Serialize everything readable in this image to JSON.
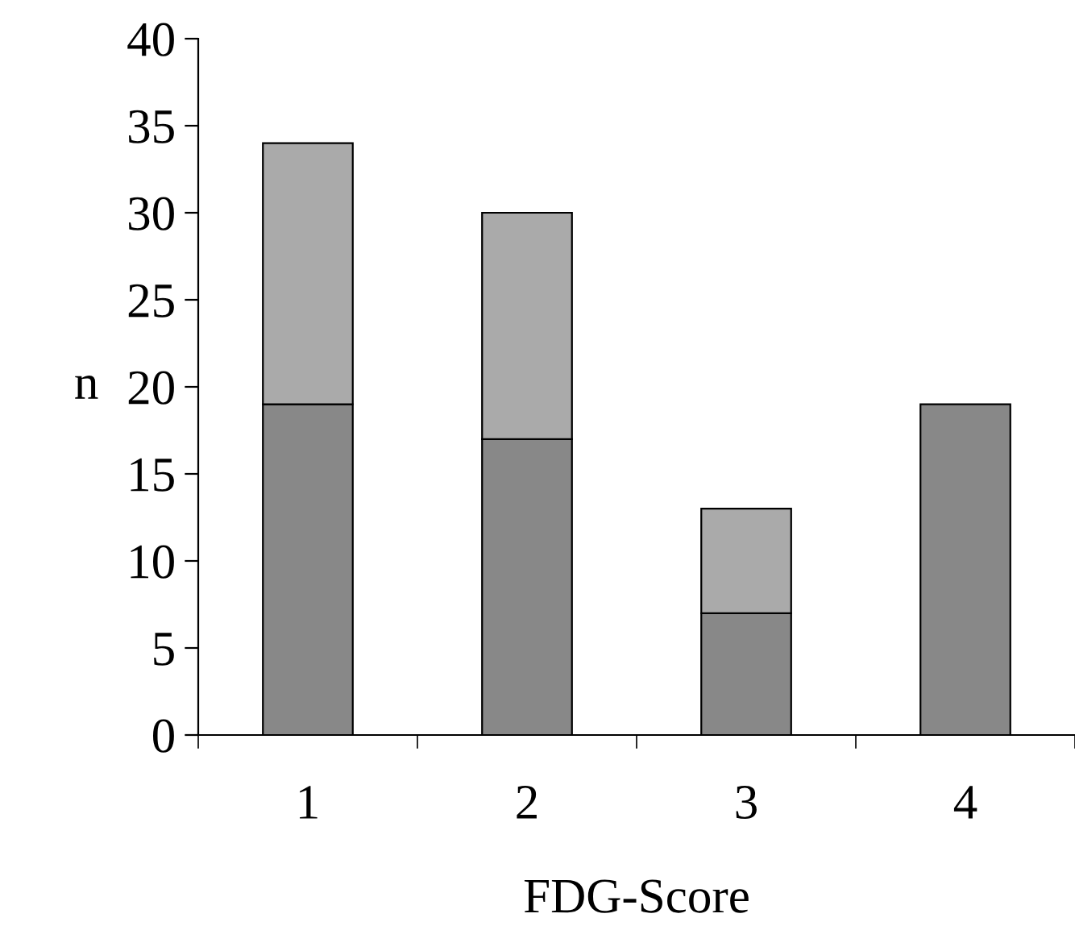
{
  "chart_data": {
    "type": "bar",
    "stacked": true,
    "categories": [
      "1",
      "2",
      "3",
      "4"
    ],
    "series": [
      {
        "color": "#888888",
        "values": [
          19,
          17,
          7,
          19
        ]
      },
      {
        "color": "#aaaaaa",
        "values": [
          15,
          13,
          6,
          null
        ]
      }
    ],
    "xlabel": "FDG-Score",
    "ylabel": "n",
    "ylim": [
      0,
      40
    ],
    "yticks": [
      0,
      5,
      10,
      15,
      20,
      25,
      30,
      35,
      40
    ],
    "grid": false,
    "legend": false
  }
}
